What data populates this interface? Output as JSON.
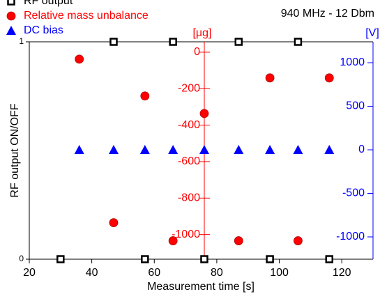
{
  "chart_data": {
    "type": "scatter",
    "title": "940 MHz - 12 Dbm",
    "x_label": "Measurement time [s]",
    "y_label": "RF output ON/OFF",
    "y2_label": "[μg]",
    "y3_label": "[V]",
    "xlim": [
      20,
      130
    ],
    "xticks": [
      20,
      40,
      60,
      80,
      100,
      120
    ],
    "ylim": [
      0,
      1
    ],
    "yticks": [
      0,
      1
    ],
    "y2lim": [
      -1135,
      57
    ],
    "y2ticks": [
      0,
      -200,
      -400,
      -600,
      -800,
      -1000
    ],
    "y3lim": [
      -1256,
      1240
    ],
    "y3ticks": [
      1000,
      500,
      0,
      -500,
      -1000
    ],
    "series": [
      {
        "name": "RF output",
        "color": "#000000",
        "marker": "square",
        "axis": "y",
        "x": [
          47,
          66,
          87,
          106,
          30,
          57,
          76,
          97,
          116
        ],
        "values": [
          1,
          1,
          1,
          1,
          0,
          0,
          0,
          0,
          0
        ]
      },
      {
        "name": "Relative mass unbalance",
        "color": "#ff0000",
        "marker": "circle",
        "axis": "y2",
        "x": [
          36,
          47,
          57,
          66,
          76,
          87,
          97,
          106,
          116
        ],
        "values": [
          -38,
          -935,
          -240,
          -1034,
          -336,
          -1034,
          -141,
          -1034,
          -141
        ]
      },
      {
        "name": "DC bias",
        "color": "#0000ff",
        "marker": "triangle",
        "axis": "y3",
        "x": [
          36,
          47,
          57,
          66,
          76,
          87,
          97,
          106,
          116
        ],
        "values": [
          0,
          0,
          0,
          0,
          0,
          0,
          0,
          0,
          0
        ]
      }
    ]
  }
}
